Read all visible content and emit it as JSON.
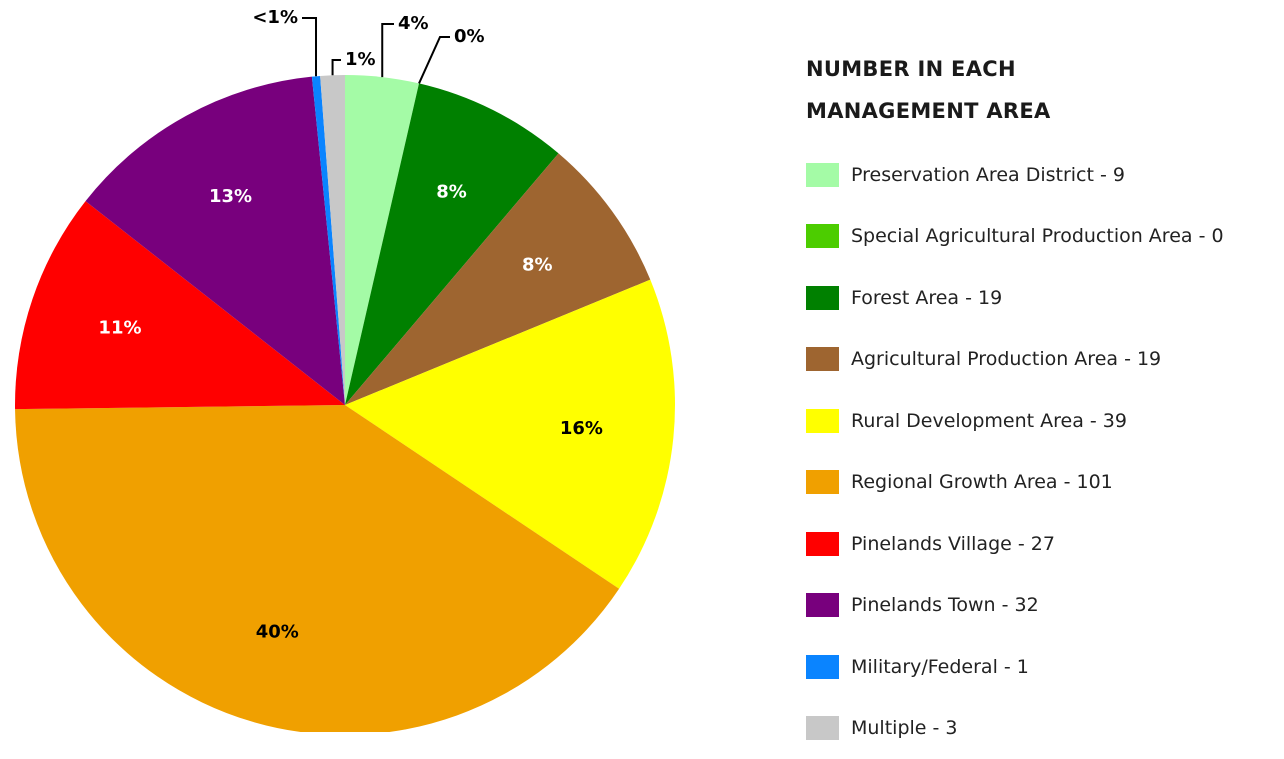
{
  "chart_data": {
    "type": "pie",
    "title": "NUMBER IN EACH MANAGEMENT AREA",
    "categories": [
      "Preservation Area District - 9",
      "Special Agricultural Production Area - 0",
      "Forest Area - 19",
      "Agricultural Production Area - 19",
      "Rural Development Area - 39",
      "Regional Growth Area - 101",
      "Pinelands Village - 27",
      "Pinelands Town - 32",
      "Military/Federal - 1",
      "Multiple - 3"
    ],
    "values": [
      9,
      0,
      19,
      19,
      39,
      101,
      27,
      32,
      1,
      3
    ],
    "value_labels": [
      "4%",
      "0%",
      "8%",
      "8%",
      "16%",
      "40%",
      "11%",
      "13%",
      "<1%",
      "1%"
    ],
    "colors": [
      "#a4fba6",
      "#4ccd00",
      "#008000",
      "#9e6530",
      "#ffff00",
      "#f0a000",
      "#ff0000",
      "#78007d",
      "#0a84ff",
      "#c8c8c8"
    ]
  }
}
